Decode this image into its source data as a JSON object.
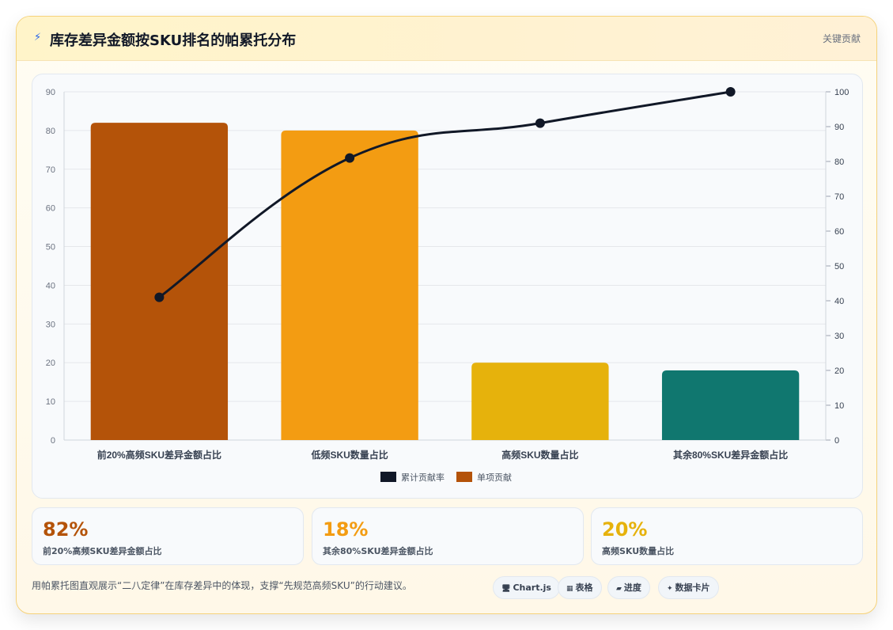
{
  "header": {
    "icon": "lightning-icon",
    "title": "库存差异金额按SKU排名的帕累托分布",
    "badge": "关键贡献"
  },
  "chart_data": {
    "type": "bar",
    "categories": [
      "前20%高频SKU差异金额占比",
      "低频SKU数量占比",
      "高频SKU数量占比",
      "其余80%SKU差异金额占比"
    ],
    "series": [
      {
        "name": "单项贡献",
        "type": "bar",
        "values": [
          82,
          80,
          20,
          18
        ],
        "colors": [
          "#b45309",
          "#f39c12",
          "#e6b20c",
          "#10776f"
        ]
      },
      {
        "name": "累计贡献率",
        "type": "line",
        "axis": "right",
        "values": [
          41,
          81,
          91,
          100
        ],
        "color": "#111827"
      }
    ],
    "y_left": {
      "min": 0,
      "max": 90,
      "ticks": [
        0,
        10,
        20,
        30,
        40,
        50,
        60,
        70,
        80,
        90
      ]
    },
    "y_right": {
      "min": 0,
      "max": 100,
      "ticks": [
        0,
        10,
        20,
        30,
        40,
        50,
        60,
        70,
        80,
        90,
        100
      ]
    },
    "legend": {
      "position": "bottom",
      "items": [
        {
          "label": "累计贡献率",
          "color": "#111827"
        },
        {
          "label": "单项贡献",
          "color": "#b45309"
        }
      ]
    },
    "grid": true
  },
  "stats": [
    {
      "value": "82%",
      "label": "前20%高频SKU差异金额占比",
      "color": "#b45309"
    },
    {
      "value": "18%",
      "label": "其余80%SKU差异金额占比",
      "color": "#f39c12"
    },
    {
      "value": "20%",
      "label": "高频SKU数量占比",
      "color": "#e6b20c"
    }
  ],
  "footer": {
    "note": "用帕累托图直观展示“二八定律”在库存差异中的体现，支撑“先规范高频SKU”的行动建议。",
    "chips": [
      {
        "icon": "monitor-icon",
        "glyph": "🖥",
        "label": "Chart.js"
      },
      {
        "icon": "table-icon",
        "glyph": "▦",
        "label": "表格"
      },
      {
        "icon": "progress-icon",
        "glyph": "▰",
        "label": "进度"
      },
      {
        "icon": "sparkle-icon",
        "glyph": "✦",
        "label": "数据卡片"
      }
    ]
  }
}
